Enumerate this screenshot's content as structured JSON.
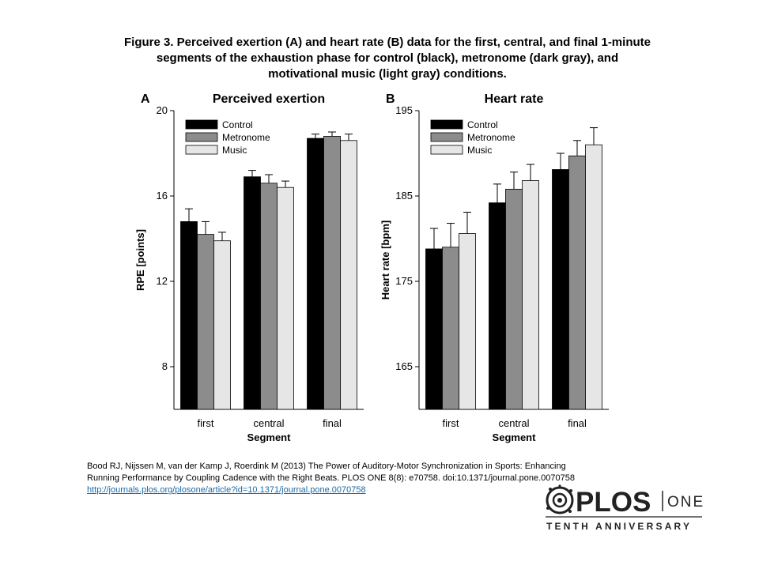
{
  "figure": {
    "title": "Figure 3. Perceived exertion (A) and heart rate (B) data for the first, central, and final 1-minute\nsegments of the exhaustion phase for control (black), metronome (dark gray), and\nmotivational music (light gray) conditions."
  },
  "chart_data": [
    {
      "type": "bar",
      "panel_label": "A",
      "title": "Perceived exertion",
      "xlabel": "Segment",
      "ylabel": "RPE [points]",
      "ylim": [
        6,
        20
      ],
      "yticks": [
        8,
        12,
        16,
        20
      ],
      "categories": [
        "first",
        "central",
        "final"
      ],
      "series": [
        {
          "name": "Control",
          "color": "#000000",
          "values": [
            14.8,
            16.9,
            18.7
          ],
          "errors": [
            0.6,
            0.3,
            0.2
          ]
        },
        {
          "name": "Metronome",
          "color": "#8c8c8c",
          "values": [
            14.2,
            16.6,
            18.8
          ],
          "errors": [
            0.6,
            0.4,
            0.2
          ]
        },
        {
          "name": "Music",
          "color": "#e6e6e6",
          "values": [
            13.9,
            16.4,
            18.6
          ],
          "errors": [
            0.4,
            0.3,
            0.3
          ]
        }
      ],
      "legend": "top-left",
      "grid": false
    },
    {
      "type": "bar",
      "panel_label": "B",
      "title": "Heart rate",
      "xlabel": "Segment",
      "ylabel": "Heart rate [bpm]",
      "ylim": [
        160,
        195
      ],
      "yticks": [
        165,
        175,
        185,
        195
      ],
      "categories": [
        "first",
        "central",
        "final"
      ],
      "series": [
        {
          "name": "Control",
          "color": "#000000",
          "values": [
            178.8,
            184.2,
            188.1
          ],
          "errors": [
            2.4,
            2.2,
            1.9
          ]
        },
        {
          "name": "Metronome",
          "color": "#8c8c8c",
          "values": [
            179.0,
            185.8,
            189.7
          ],
          "errors": [
            2.8,
            2.0,
            1.8
          ]
        },
        {
          "name": "Music",
          "color": "#e6e6e6",
          "values": [
            180.6,
            186.8,
            191.0
          ],
          "errors": [
            2.5,
            1.9,
            2.0
          ]
        }
      ],
      "legend": "top-left",
      "grid": false
    }
  ],
  "citation": {
    "line1": "Bood RJ, Nijssen M, van der Kamp J, Roerdink M (2013) The Power of Auditory-Motor Synchronization in Sports: Enhancing",
    "line2": "Running Performance by Coupling Cadence with the Right Beats. PLOS ONE 8(8): e70758. doi:10.1371/journal.pone.0070758",
    "link": "http://journals.plos.org/plosone/article?id=10.1371/journal.pone.0070758"
  },
  "logo": {
    "plos": "PLOS",
    "one": "ONE",
    "anniversary": "TENTH ANNIVERSARY"
  }
}
